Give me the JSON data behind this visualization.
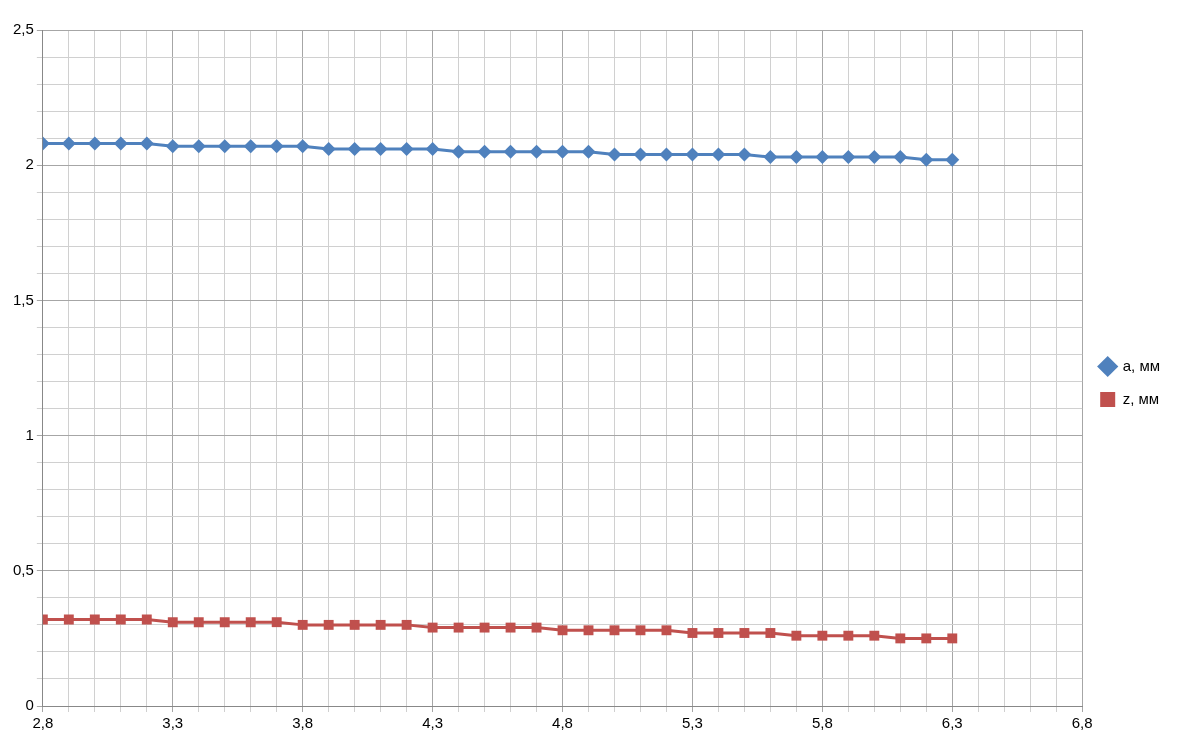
{
  "chart_data": {
    "type": "line",
    "x": [
      2.8,
      2.9,
      3.0,
      3.1,
      3.2,
      3.3,
      3.4,
      3.5,
      3.6,
      3.7,
      3.8,
      3.9,
      4.0,
      4.1,
      4.2,
      4.3,
      4.4,
      4.5,
      4.6,
      4.7,
      4.8,
      4.9,
      5.0,
      5.1,
      5.2,
      5.3,
      5.4,
      5.5,
      5.6,
      5.7,
      5.8,
      5.9,
      6.0,
      6.1,
      6.2,
      6.3
    ],
    "series": [
      {
        "name": "a, мм",
        "color": "#4f81bd",
        "marker": "diamond",
        "values": [
          2.08,
          2.08,
          2.08,
          2.08,
          2.08,
          2.07,
          2.07,
          2.07,
          2.07,
          2.07,
          2.07,
          2.06,
          2.06,
          2.06,
          2.06,
          2.06,
          2.05,
          2.05,
          2.05,
          2.05,
          2.05,
          2.05,
          2.04,
          2.04,
          2.04,
          2.04,
          2.04,
          2.04,
          2.03,
          2.03,
          2.03,
          2.03,
          2.03,
          2.03,
          2.02,
          2.02
        ]
      },
      {
        "name": "z, мм",
        "color": "#c0504d",
        "marker": "square",
        "values": [
          0.32,
          0.32,
          0.32,
          0.32,
          0.32,
          0.31,
          0.31,
          0.31,
          0.31,
          0.31,
          0.3,
          0.3,
          0.3,
          0.3,
          0.3,
          0.29,
          0.29,
          0.29,
          0.29,
          0.29,
          0.28,
          0.28,
          0.28,
          0.28,
          0.28,
          0.27,
          0.27,
          0.27,
          0.27,
          0.26,
          0.26,
          0.26,
          0.26,
          0.25,
          0.25,
          0.25
        ]
      }
    ],
    "xlim": [
      2.8,
      6.8
    ],
    "xticks": [
      {
        "value": 2.8,
        "label": "2,8"
      },
      {
        "value": 2.9,
        "label": null
      },
      {
        "value": 3.0,
        "label": null
      },
      {
        "value": 3.1,
        "label": null
      },
      {
        "value": 3.2,
        "label": null
      },
      {
        "value": 3.3,
        "label": "3,3"
      },
      {
        "value": 3.4,
        "label": null
      },
      {
        "value": 3.5,
        "label": null
      },
      {
        "value": 3.6,
        "label": null
      },
      {
        "value": 3.7,
        "label": null
      },
      {
        "value": 3.8,
        "label": "3,8"
      },
      {
        "value": 3.9,
        "label": null
      },
      {
        "value": 4.0,
        "label": null
      },
      {
        "value": 4.1,
        "label": null
      },
      {
        "value": 4.2,
        "label": null
      },
      {
        "value": 4.3,
        "label": "4,3"
      },
      {
        "value": 4.4,
        "label": null
      },
      {
        "value": 4.5,
        "label": null
      },
      {
        "value": 4.6,
        "label": null
      },
      {
        "value": 4.7,
        "label": null
      },
      {
        "value": 4.8,
        "label": "4,8"
      },
      {
        "value": 4.9,
        "label": null
      },
      {
        "value": 5.0,
        "label": null
      },
      {
        "value": 5.1,
        "label": null
      },
      {
        "value": 5.2,
        "label": null
      },
      {
        "value": 5.3,
        "label": "5,3"
      },
      {
        "value": 5.4,
        "label": null
      },
      {
        "value": 5.5,
        "label": null
      },
      {
        "value": 5.6,
        "label": null
      },
      {
        "value": 5.7,
        "label": null
      },
      {
        "value": 5.8,
        "label": "5,8"
      },
      {
        "value": 5.9,
        "label": null
      },
      {
        "value": 6.0,
        "label": null
      },
      {
        "value": 6.1,
        "label": null
      },
      {
        "value": 6.2,
        "label": null
      },
      {
        "value": 6.3,
        "label": "6,3"
      },
      {
        "value": 6.4,
        "label": null
      },
      {
        "value": 6.5,
        "label": null
      },
      {
        "value": 6.6,
        "label": null
      },
      {
        "value": 6.7,
        "label": null
      },
      {
        "value": 6.8,
        "label": "6,8"
      }
    ],
    "ylim": [
      0,
      2.5
    ],
    "yticks": [
      0,
      {
        "value": 0.1,
        "label": null
      },
      {
        "value": 0.2,
        "label": null
      },
      {
        "value": 0.3,
        "label": null
      },
      {
        "value": 0.4,
        "label": null
      },
      {
        "value": 0.5,
        "label": "0,5"
      },
      {
        "value": 0.6,
        "label": null
      },
      {
        "value": 0.7,
        "label": null
      },
      {
        "value": 0.8,
        "label": null
      },
      {
        "value": 0.9,
        "label": null
      },
      1,
      {
        "value": 1.1,
        "label": null
      },
      {
        "value": 1.2,
        "label": null
      },
      {
        "value": 1.3,
        "label": null
      },
      {
        "value": 1.4,
        "label": null
      },
      {
        "value": 1.5,
        "label": "1,5"
      },
      {
        "value": 1.6,
        "label": null
      },
      {
        "value": 1.7,
        "label": null
      },
      {
        "value": 1.8,
        "label": null
      },
      {
        "value": 1.9,
        "label": null
      },
      2,
      {
        "value": 2.1,
        "label": null
      },
      {
        "value": 2.2,
        "label": null
      },
      {
        "value": 2.3,
        "label": null
      },
      {
        "value": 2.4,
        "label": null
      },
      {
        "value": 2.5,
        "label": "2,5"
      }
    ],
    "grid": true,
    "legend": "right",
    "line_style": "solid"
  }
}
